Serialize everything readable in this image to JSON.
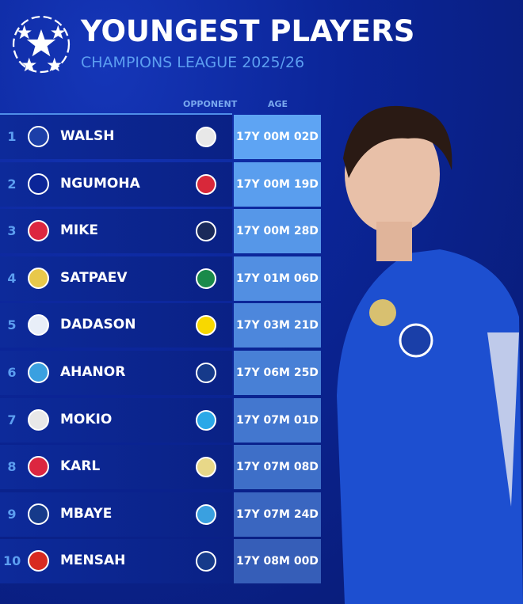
{
  "header": {
    "title": "YOUNGEST PLAYERS",
    "subtitle": "CHAMPIONS LEAGUE 2025/26",
    "logo": "champions-league-starball-icon"
  },
  "columns": {
    "opponent": "OPPONENT",
    "age": "AGE"
  },
  "rows": [
    {
      "rank": "1",
      "club": "chelsea",
      "name": "WALSH",
      "opponent": "ajax",
      "age": "17Y 00M 02D",
      "age_color": "#5ea4f3"
    },
    {
      "rank": "2",
      "club": "liverpool",
      "name": "NGUMOHA",
      "opponent": "atletico-madrid",
      "age": "17Y 00M 19D",
      "age_color": "#5a9eee"
    },
    {
      "rank": "3",
      "club": "bayern",
      "name": "MIKE",
      "opponent": "club-brugge",
      "age": "17Y 00M 28D",
      "age_color": "#5697e8"
    },
    {
      "rank": "4",
      "club": "kairat",
      "name": "SATPAEV",
      "opponent": "sporting",
      "age": "17Y 01M 06D",
      "age_color": "#528fe2"
    },
    {
      "rank": "5",
      "club": "copenhagen",
      "name": "DADASON",
      "opponent": "dortmund",
      "age": "17Y 03M 21D",
      "age_color": "#4d87dc"
    },
    {
      "rank": "6",
      "club": "atalanta",
      "name": "AHANOR",
      "opponent": "psg",
      "age": "17Y 06M 25D",
      "age_color": "#4880d6"
    },
    {
      "rank": "7",
      "club": "ajax",
      "name": "MOKIO",
      "opponent": "marseille",
      "age": "17Y 07M 01D",
      "age_color": "#4377cf"
    },
    {
      "rank": "8",
      "club": "bayern",
      "name": "KARL",
      "opponent": "pafos",
      "age": "17Y 07M 08D",
      "age_color": "#3e6fc8"
    },
    {
      "rank": "9",
      "club": "psg",
      "name": "MBAYE",
      "opponent": "atalanta",
      "age": "17Y 07M 24D",
      "age_color": "#3a66c0"
    },
    {
      "rank": "10",
      "club": "leverkusen",
      "name": "MENSAH",
      "opponent": "psg",
      "age": "17Y 08M 00D",
      "age_color": "#365eb8"
    }
  ],
  "club_colors": {
    "chelsea": "#1c3fa8",
    "liverpool": "#0b2598",
    "bayern": "#dc2640",
    "kairat": "#e8c84a",
    "copenhagen": "#e8eef8",
    "atalanta": "#3aa0e0",
    "ajax": "#e8e8e8",
    "psg": "#163a8a",
    "leverkusen": "#d82a20",
    "atletico-madrid": "#d8283a",
    "club-brugge": "#1a2a5a",
    "sporting": "#1a8a4a",
    "dortmund": "#f8d800",
    "marseille": "#2aa8e8",
    "pafos": "#e8d888"
  }
}
